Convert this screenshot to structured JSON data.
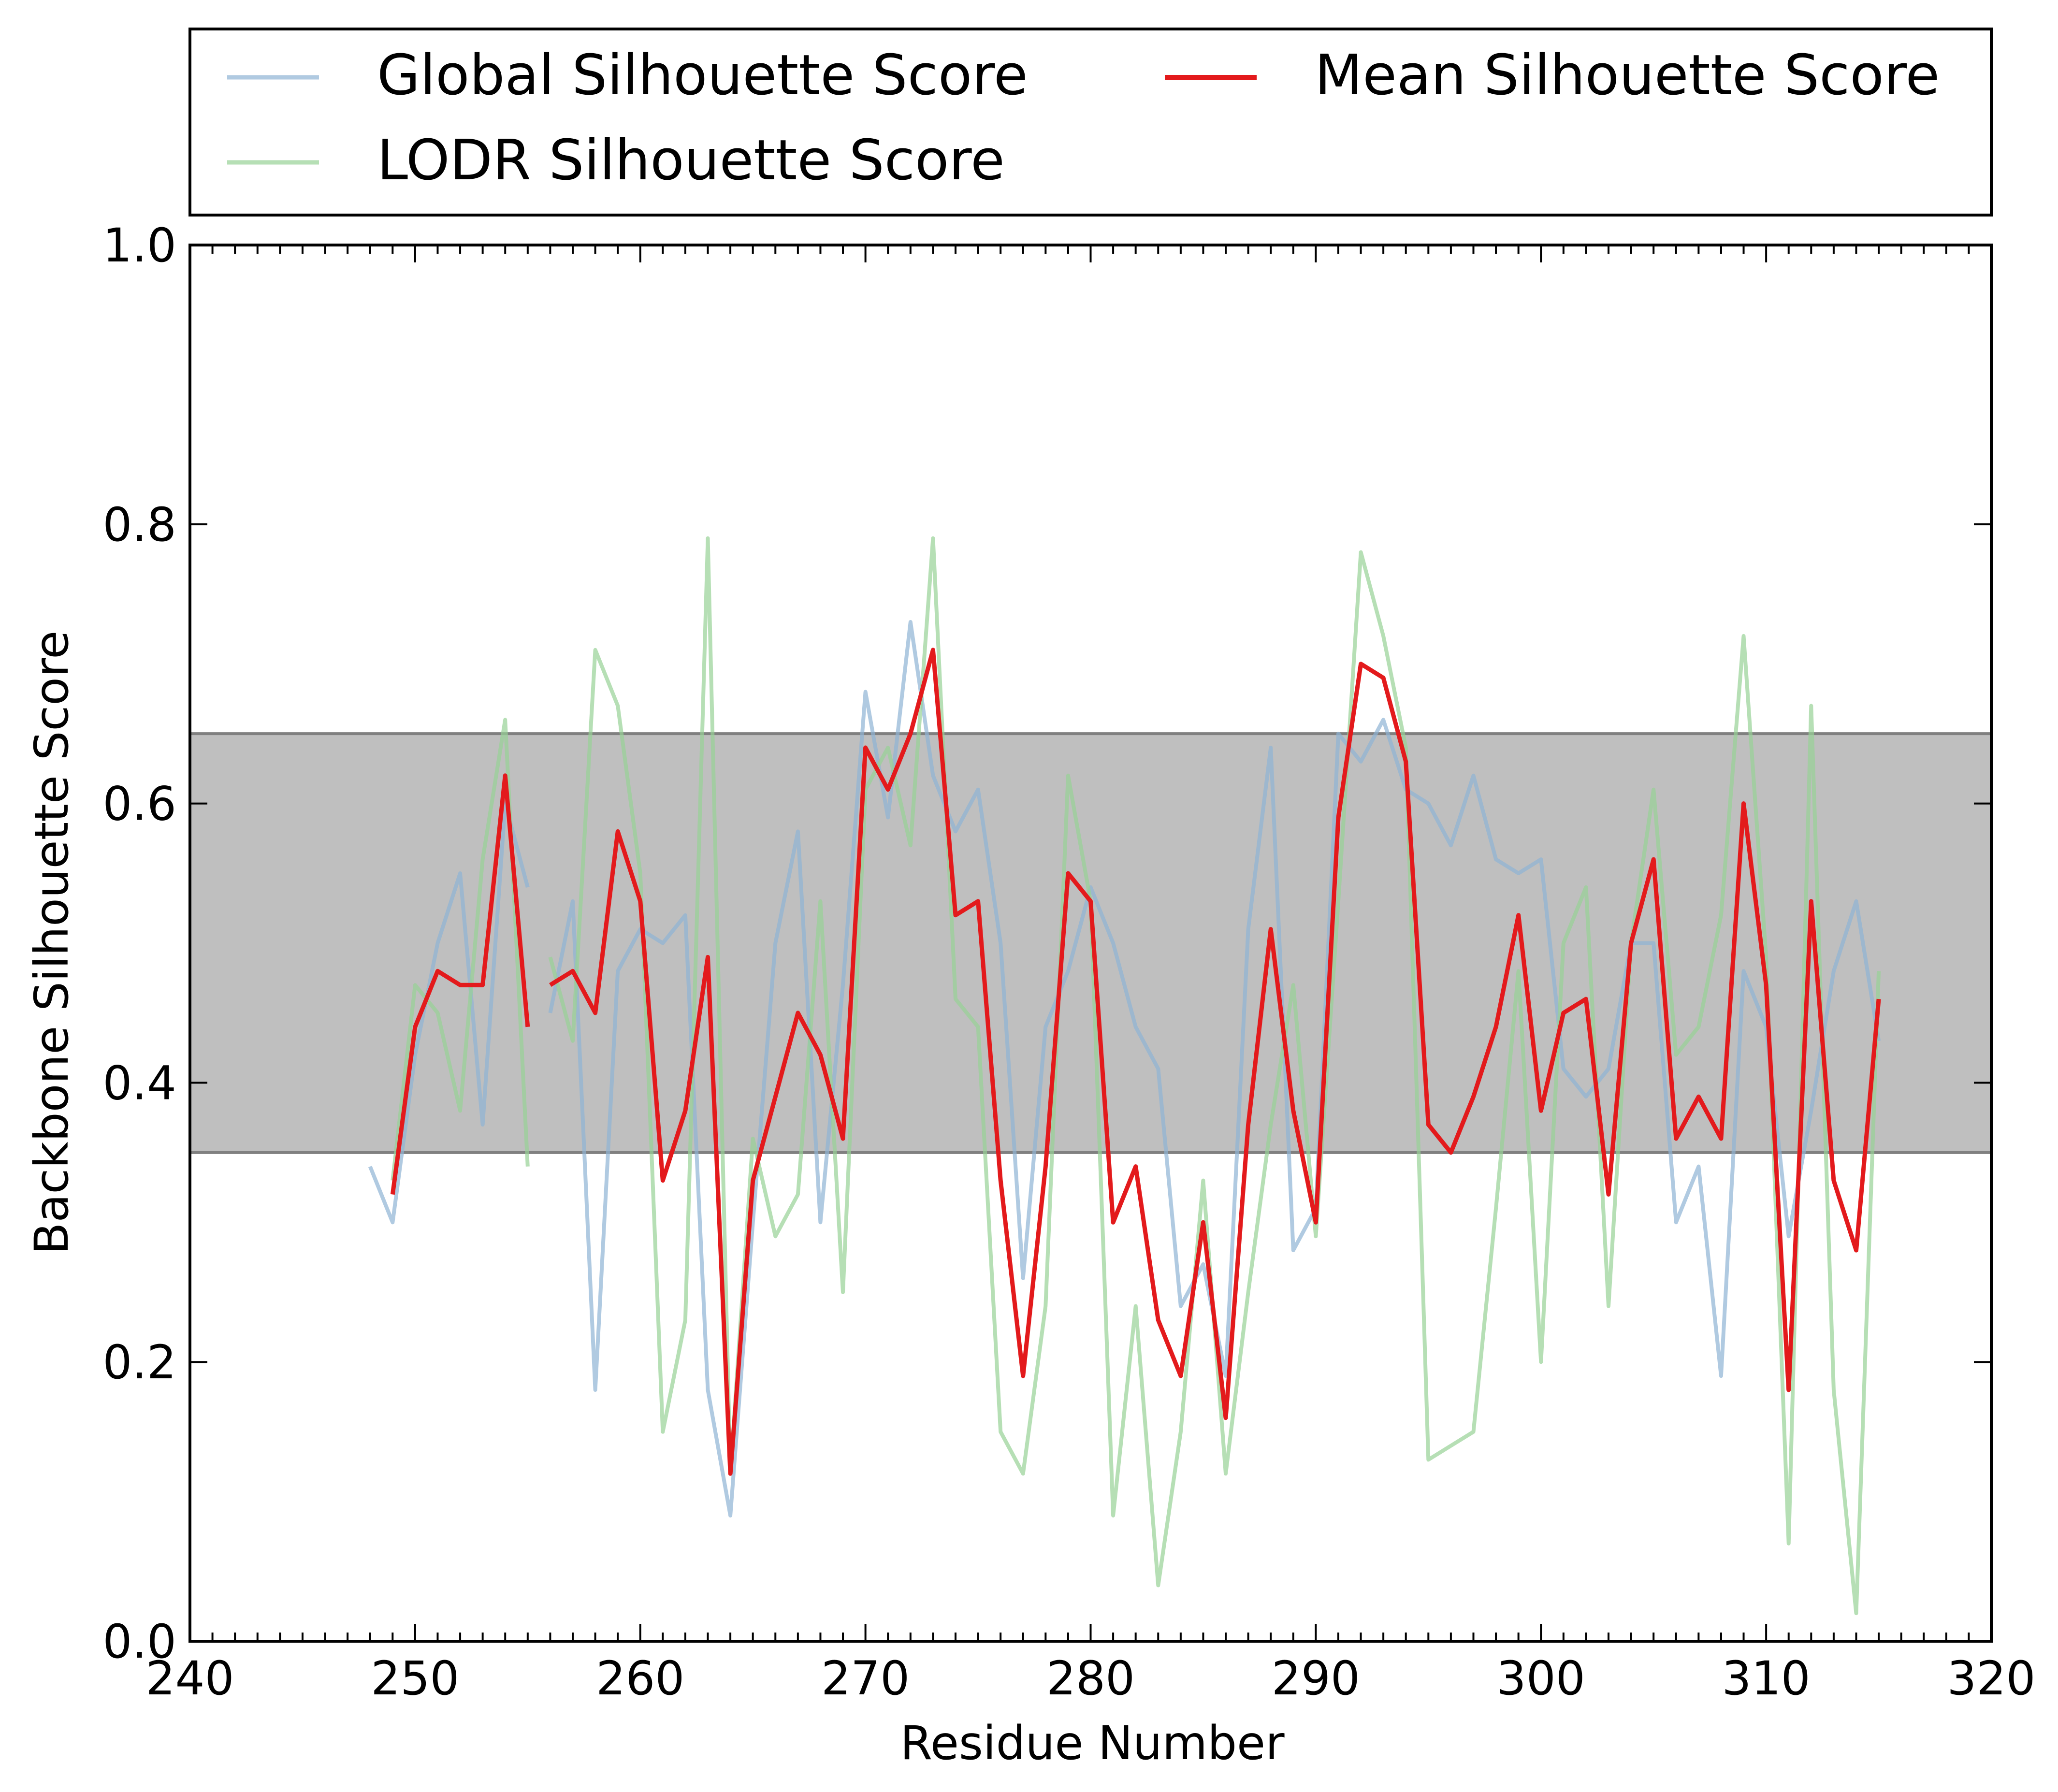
{
  "chart_data": {
    "type": "line",
    "title": "",
    "xlabel": "Residue Number",
    "ylabel": "Backbone Silhouette Score",
    "xlim": [
      240,
      320
    ],
    "ylim": [
      0.0,
      1.0
    ],
    "x_ticks": [
      "240",
      "250",
      "260",
      "270",
      "280",
      "290",
      "300",
      "310",
      "320"
    ],
    "y_ticks": [
      "0.0",
      "0.2",
      "0.4",
      "0.6",
      "0.8",
      "1.0"
    ],
    "grid": false,
    "legend_position": "top, outside plot, 2 columns",
    "band": {
      "y_from": 0.35,
      "y_to": 0.65,
      "color": "#bfbfbf",
      "edge_color": "#808080"
    },
    "series": [
      {
        "name": "Global Silhouette Score",
        "color": "#8fb4d4",
        "opacity": 0.7,
        "segments": [
          {
            "x": [
              248,
              249,
              250,
              251,
              252,
              253,
              254,
              255
            ],
            "y": [
              0.34,
              0.3,
              0.42,
              0.5,
              0.55,
              0.37,
              0.6,
              0.54
            ]
          },
          {
            "x": [
              256,
              257,
              258,
              259,
              260,
              261,
              262,
              263,
              264,
              265,
              266,
              267,
              268,
              269,
              270,
              271,
              272,
              273,
              274,
              275,
              276,
              277,
              278,
              279,
              280,
              281,
              282,
              283,
              284,
              285,
              286,
              287,
              288,
              289,
              290,
              291,
              292,
              293,
              294,
              295,
              296,
              297,
              298,
              299,
              300,
              301,
              302,
              303,
              304,
              305,
              306,
              307,
              308,
              309,
              310,
              311,
              312,
              313,
              314,
              315
            ],
            "y": [
              0.45,
              0.53,
              0.18,
              0.48,
              0.51,
              0.5,
              0.52,
              0.18,
              0.09,
              0.3,
              0.5,
              0.58,
              0.3,
              0.47,
              0.68,
              0.59,
              0.73,
              0.62,
              0.58,
              0.61,
              0.5,
              0.26,
              0.44,
              0.48,
              0.54,
              0.5,
              0.44,
              0.41,
              0.24,
              0.27,
              0.19,
              0.51,
              0.64,
              0.28,
              0.31,
              0.65,
              0.63,
              0.66,
              0.61,
              0.6,
              0.57,
              0.62,
              0.56,
              0.55,
              0.56,
              0.41,
              0.39,
              0.41,
              0.5,
              0.5,
              0.3,
              0.34,
              0.19,
              0.48,
              0.44,
              0.29,
              0.38,
              0.48,
              0.53,
              0.43
            ]
          }
        ]
      },
      {
        "name": "LODR Silhouette Score",
        "color": "#97d196",
        "opacity": 0.7,
        "segments": [
          {
            "x": [
              249,
              250,
              251,
              252,
              253,
              254,
              255
            ],
            "y": [
              0.33,
              0.47,
              0.45,
              0.38,
              0.56,
              0.66,
              0.34
            ]
          },
          {
            "x": [
              256,
              257,
              258,
              259,
              260,
              261,
              262,
              263,
              264,
              265,
              266,
              267,
              268,
              269,
              270,
              271,
              272,
              273,
              274,
              275,
              276,
              277,
              278,
              279,
              280,
              281,
              282,
              283,
              284,
              285,
              286,
              287,
              288,
              289,
              290,
              291,
              292,
              293,
              294,
              295,
              296,
              297,
              298,
              299,
              300,
              301,
              302,
              303,
              304,
              305,
              306,
              307,
              308,
              309,
              310,
              311,
              312,
              313,
              314,
              315
            ],
            "y": [
              0.49,
              0.43,
              0.71,
              0.67,
              0.55,
              0.15,
              0.23,
              0.79,
              0.12,
              0.36,
              0.29,
              0.32,
              0.53,
              0.25,
              0.61,
              0.64,
              0.57,
              0.79,
              0.46,
              0.44,
              0.15,
              0.12,
              0.24,
              0.62,
              0.53,
              0.09,
              0.24,
              0.04,
              0.15,
              0.33,
              0.12,
              0.25,
              0.37,
              0.47,
              0.29,
              0.53,
              0.78,
              0.72,
              0.64,
              0.13,
              0.14,
              0.15,
              0.31,
              0.48,
              0.2,
              0.5,
              0.54,
              0.24,
              0.5,
              0.61,
              0.42,
              0.44,
              0.52,
              0.72,
              0.49,
              0.07,
              0.67,
              0.18,
              0.02,
              0.48
            ]
          }
        ]
      },
      {
        "name": "Mean Silhouette Score",
        "color": "#e31a1c",
        "opacity": 1.0,
        "segments": [
          {
            "x": [
              249,
              250,
              251,
              252,
              253,
              254,
              255
            ],
            "y": [
              0.32,
              0.44,
              0.48,
              0.47,
              0.47,
              0.62,
              0.44
            ]
          },
          {
            "x": [
              256,
              257,
              258,
              259,
              260,
              261,
              262,
              263,
              264,
              265,
              266,
              267,
              268,
              269,
              270,
              271,
              272,
              273,
              274,
              275,
              276,
              277,
              278,
              279,
              280,
              281,
              282,
              283,
              284,
              285,
              286,
              287,
              288,
              289,
              290,
              291,
              292,
              293,
              294,
              295,
              296,
              297,
              298,
              299,
              300,
              301,
              302,
              303,
              304,
              305,
              306,
              307,
              308,
              309,
              310,
              311,
              312,
              313,
              314,
              315
            ],
            "y": [
              0.47,
              0.48,
              0.45,
              0.58,
              0.53,
              0.33,
              0.38,
              0.49,
              0.12,
              0.33,
              0.39,
              0.45,
              0.42,
              0.36,
              0.64,
              0.61,
              0.65,
              0.71,
              0.52,
              0.53,
              0.33,
              0.19,
              0.34,
              0.55,
              0.53,
              0.3,
              0.34,
              0.23,
              0.19,
              0.3,
              0.16,
              0.37,
              0.51,
              0.38,
              0.3,
              0.59,
              0.7,
              0.69,
              0.63,
              0.37,
              0.35,
              0.39,
              0.44,
              0.52,
              0.38,
              0.45,
              0.46,
              0.32,
              0.5,
              0.56,
              0.36,
              0.39,
              0.36,
              0.6,
              0.47,
              0.18,
              0.53,
              0.33,
              0.28,
              0.46
            ]
          }
        ]
      }
    ]
  }
}
